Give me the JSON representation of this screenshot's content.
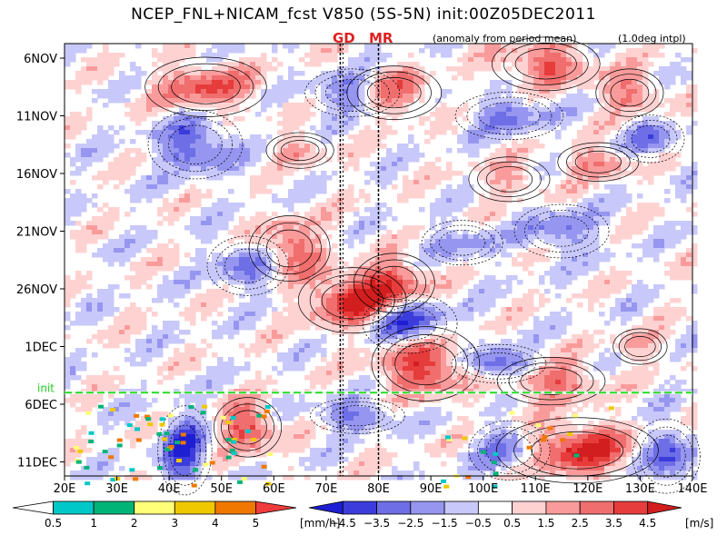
{
  "header": {
    "title": "NCEP_FNL+NICAM_fcst V850 (5S-5N) init:00Z05DEC2011",
    "anomaly_note": "(anomaly from period mean)",
    "interp_note": "(1.0deg intpl)"
  },
  "markers": [
    {
      "label": "GD",
      "lon": 72.7
    },
    {
      "label": "MR",
      "lon": 80.0
    }
  ],
  "init_label": "init",
  "chart_data": {
    "type": "heatmap",
    "variable": "V850 anomaly",
    "xlabel": "",
    "ylabel": "",
    "x_range_lon": [
      20,
      140
    ],
    "x_tick_labels": [
      "20E",
      "30E",
      "40E",
      "50E",
      "60E",
      "70E",
      "80E",
      "90E",
      "100E",
      "110E",
      "120E",
      "130E",
      "140E"
    ],
    "x_tick_values": [
      20,
      30,
      40,
      50,
      60,
      70,
      80,
      90,
      100,
      110,
      120,
      130,
      140
    ],
    "y_range_day": [
      3,
      72
    ],
    "y_tick_labels": [
      "6NOV",
      "11NOV",
      "16NOV",
      "21NOV",
      "26NOV",
      "1DEC",
      "6DEC",
      "11DEC"
    ],
    "y_tick_values": [
      6,
      11,
      16,
      21,
      26,
      31,
      36,
      41
    ],
    "init_day": 35,
    "features": [
      {
        "sign": "pos",
        "lon": 63,
        "day": 22.5,
        "rlon": 6,
        "rday": 2.2,
        "amp": 3.5
      },
      {
        "sign": "pos",
        "lon": 75,
        "day": 27,
        "rlon": 8,
        "rday": 2.2,
        "amp": 4.5
      },
      {
        "sign": "pos",
        "lon": 83,
        "day": 25.5,
        "rlon": 6,
        "rday": 2,
        "amp": 3.5
      },
      {
        "sign": "pos",
        "lon": 89,
        "day": 32.5,
        "rlon": 8,
        "rday": 2.5,
        "amp": 4.5
      },
      {
        "sign": "pos",
        "lon": 113,
        "day": 34,
        "rlon": 8,
        "rday": 1.6,
        "amp": 3.5
      },
      {
        "sign": "pos",
        "lon": 55,
        "day": 38,
        "rlon": 5,
        "rday": 2,
        "amp": 4.0
      },
      {
        "sign": "pos",
        "lon": 118,
        "day": 40,
        "rlon": 12,
        "rday": 2.2,
        "amp": 4.5
      },
      {
        "sign": "pos",
        "lon": 47,
        "day": 8.5,
        "rlon": 9,
        "rday": 2,
        "amp": 3.5
      },
      {
        "sign": "pos",
        "lon": 83,
        "day": 9,
        "rlon": 7,
        "rday": 1.8,
        "amp": 3.5
      },
      {
        "sign": "pos",
        "lon": 112,
        "day": 6.5,
        "rlon": 8,
        "rday": 1.8,
        "amp": 3.5
      },
      {
        "sign": "pos",
        "lon": 128,
        "day": 9,
        "rlon": 5,
        "rday": 1.6,
        "amp": 3.0
      },
      {
        "sign": "pos",
        "lon": 122,
        "day": 15,
        "rlon": 6,
        "rday": 1.3,
        "amp": 2.5
      },
      {
        "sign": "pos",
        "lon": 65,
        "day": 14,
        "rlon": 5,
        "rday": 1.2,
        "amp": 2.0
      },
      {
        "sign": "pos",
        "lon": 105,
        "day": 16.5,
        "rlon": 6,
        "rday": 1.5,
        "amp": 2.0
      },
      {
        "sign": "pos",
        "lon": 130,
        "day": 31,
        "rlon": 4,
        "rday": 1.2,
        "amp": 2.0
      },
      {
        "sign": "neg",
        "lon": 86,
        "day": 29,
        "rlon": 7,
        "rday": 2,
        "amp": 4.5
      },
      {
        "sign": "neg",
        "lon": 103,
        "day": 32.5,
        "rlon": 7,
        "rday": 1.3,
        "amp": 4.0
      },
      {
        "sign": "neg",
        "lon": 43,
        "day": 40,
        "rlon": 4,
        "rday": 3,
        "amp": 4.5
      },
      {
        "sign": "neg",
        "lon": 105,
        "day": 40,
        "rlon": 6,
        "rday": 2,
        "amp": 3.5
      },
      {
        "sign": "neg",
        "lon": 135,
        "day": 40.5,
        "rlon": 5,
        "rday": 2.5,
        "amp": 4.0
      },
      {
        "sign": "neg",
        "lon": 45,
        "day": 13.5,
        "rlon": 7,
        "rday": 2.3,
        "amp": 3.5
      },
      {
        "sign": "neg",
        "lon": 75,
        "day": 9,
        "rlon": 7,
        "rday": 1.6,
        "amp": 3.0
      },
      {
        "sign": "neg",
        "lon": 105,
        "day": 11,
        "rlon": 8,
        "rday": 1.6,
        "amp": 2.5
      },
      {
        "sign": "neg",
        "lon": 115,
        "day": 21,
        "rlon": 7,
        "rday": 1.8,
        "amp": 2.5
      },
      {
        "sign": "neg",
        "lon": 55,
        "day": 24,
        "rlon": 6,
        "rday": 2,
        "amp": 3.0
      },
      {
        "sign": "neg",
        "lon": 76,
        "day": 37,
        "rlon": 7,
        "rday": 1.2,
        "amp": 3.0
      },
      {
        "sign": "neg",
        "lon": 132,
        "day": 13,
        "rlon": 5,
        "rday": 1.6,
        "amp": 2.5
      },
      {
        "sign": "neg",
        "lon": 96,
        "day": 22,
        "rlon": 6,
        "rday": 1.5,
        "amp": 2.0
      }
    ],
    "precip_colorbar": {
      "unit": "[mm/h]",
      "labels": [
        "0.5",
        "1",
        "2",
        "3",
        "4",
        "5"
      ],
      "colors": [
        "#ffffff",
        "#00c8c8",
        "#00b478",
        "#ffff78",
        "#f0c800",
        "#f07800",
        "#f03c3c"
      ]
    },
    "wind_colorbar": {
      "unit": "[m/s]",
      "labels": [
        "−4.5",
        "−3.5",
        "−2.5",
        "−1.5",
        "−0.5",
        "0.5",
        "1.5",
        "2.5",
        "3.5",
        "4.5"
      ],
      "colors": [
        "#1e1ed2",
        "#3c3cdc",
        "#6e6ee6",
        "#9696f0",
        "#c8c8fa",
        "#ffffff",
        "#ffd2d2",
        "#fa9b9b",
        "#f06e6e",
        "#e63c3c",
        "#d21e1e"
      ]
    }
  }
}
